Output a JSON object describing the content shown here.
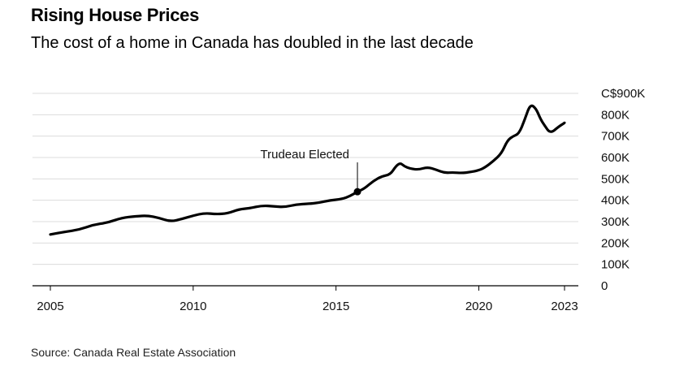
{
  "header": {
    "title": "Rising House Prices",
    "subtitle": "The cost of a home in Canada has doubled in the last decade"
  },
  "footer": {
    "source": "Source: Canada Real Estate Association"
  },
  "chart_data": {
    "type": "line",
    "title": "Rising House Prices",
    "subtitle": "The cost of a home in Canada has doubled in the last decade",
    "xlabel": "",
    "ylabel": "",
    "x_ticks": [
      "2005",
      "2010",
      "2015",
      "2020",
      "2023"
    ],
    "y_ticks": [
      "0",
      "100K",
      "200K",
      "300K",
      "400K",
      "500K",
      "600K",
      "700K",
      "800K",
      "C$900K"
    ],
    "ylim": [
      0,
      900000
    ],
    "xlim": [
      2005,
      2023
    ],
    "grid": true,
    "legend": "none",
    "line_color": "#000000",
    "series": [
      {
        "x": [
          2005.0,
          2005.5,
          2006.0,
          2006.5,
          2007.0,
          2007.5,
          2008.0,
          2008.4,
          2008.8,
          2009.2,
          2009.6,
          2010.0,
          2010.4,
          2010.8,
          2011.2,
          2011.6,
          2012.0,
          2012.4,
          2012.8,
          2013.2,
          2013.6,
          2014.0,
          2014.4,
          2014.8,
          2015.2,
          2015.5,
          2015.75,
          2016.0,
          2016.3,
          2016.6,
          2016.9,
          2017.1,
          2017.25,
          2017.4,
          2017.6,
          2017.9,
          2018.2,
          2018.5,
          2018.8,
          2019.1,
          2019.4,
          2019.7,
          2020.0,
          2020.2,
          2020.5,
          2020.8,
          2021.0,
          2021.2,
          2021.4,
          2021.6,
          2021.8,
          2022.0,
          2022.15,
          2022.3,
          2022.5,
          2022.8,
          2023.0
        ],
        "y": [
          240000,
          252000,
          262000,
          285000,
          295000,
          318000,
          325000,
          328000,
          318000,
          300000,
          312000,
          328000,
          340000,
          335000,
          338000,
          358000,
          363000,
          375000,
          372000,
          368000,
          380000,
          383000,
          388000,
          400000,
          405000,
          420000,
          440000,
          455000,
          490000,
          512000,
          520000,
          560000,
          575000,
          558000,
          548000,
          543000,
          555000,
          543000,
          528000,
          530000,
          527000,
          532000,
          540000,
          552000,
          582000,
          620000,
          680000,
          700000,
          710000,
          775000,
          850000,
          830000,
          782000,
          750000,
          712000,
          745000,
          762000
        ]
      }
    ],
    "annotations": [
      {
        "x": 2015.75,
        "y": 440000,
        "text": "Trudeau Elected"
      }
    ]
  }
}
